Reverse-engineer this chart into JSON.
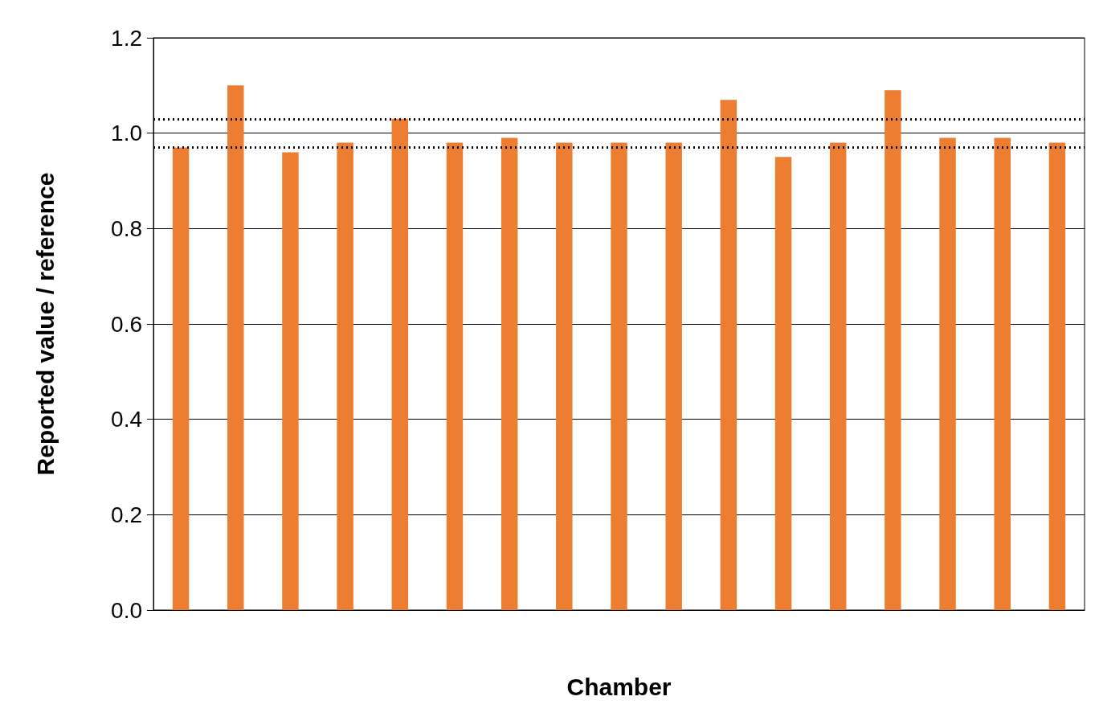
{
  "chart_data": {
    "type": "bar",
    "xlabel": "Chamber",
    "ylabel": "Reported value / reference",
    "categories": [
      null,
      null,
      null,
      null,
      null,
      null,
      null,
      null,
      null,
      null,
      null,
      null,
      null,
      null,
      null,
      null,
      null
    ],
    "values": [
      0.97,
      1.1,
      0.96,
      0.98,
      1.03,
      0.98,
      0.99,
      0.98,
      0.98,
      0.98,
      1.07,
      0.95,
      0.98,
      1.09,
      0.99,
      0.99,
      0.98
    ],
    "color": "#ed7d31",
    "ylim": [
      0,
      1.2
    ],
    "yticks": [
      {
        "value": 0,
        "label": "0.0"
      },
      0.2,
      0.4,
      0.6,
      0.8,
      {
        "value": 1,
        "label": "1.0"
      },
      1.2
    ],
    "grid": "y",
    "ref_lines": [
      {
        "axis": "y",
        "value": 1.03,
        "color": "#000000",
        "line_style": "dotted"
      },
      {
        "axis": "y",
        "value": 0.97,
        "color": "#000000",
        "line_style": "dotted"
      }
    ]
  }
}
